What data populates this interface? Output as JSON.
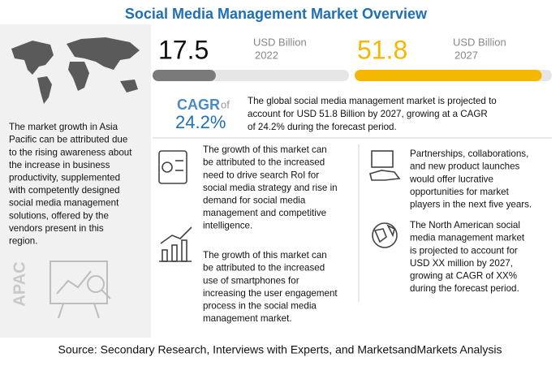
{
  "title": "Social Media Management Market Overview",
  "apac": {
    "label": "APAC",
    "text": [
      "The market growth in Asia",
      "Pacific can be attributed due",
      "to the rising awareness about",
      "the increase in business",
      "productivity, supplemented",
      "with competently designed",
      "social media management",
      "solutions, offered by the",
      "vendors present in this",
      "region."
    ]
  },
  "metrics": [
    {
      "value": 17.5,
      "unit": "USD Billion",
      "year": "2022"
    },
    {
      "value": 51.8,
      "unit": "USD Billion",
      "year": "2027"
    }
  ],
  "cagr": {
    "label": "CAGR",
    "of": "of",
    "value": "24.2%",
    "text": [
      "The global social media management market is projected to",
      "account for USD 51.8 Billion by 2027, growing at a CAGR",
      "of 24.2% during the forecast period."
    ]
  },
  "insights": [
    {
      "text": [
        "The growth of this market can",
        "be attributed to the increased",
        "need to drive search RoI for",
        "social media strategy and rise in",
        "demand for social media",
        "management and competitive",
        "intelligence."
      ]
    },
    {
      "text": [
        "The growth of this market can",
        "be attributed to the increased",
        "use of smartphones for",
        "increasing the user engagement",
        "process in the social media",
        "management market."
      ]
    },
    {
      "text": [
        "Partnerships, collaborations,",
        "and new product launches",
        "would offer lucrative",
        "opportunities for market",
        "players in the next five years."
      ]
    },
    {
      "text": [
        "The North American social",
        "media management market",
        "is projected to account for",
        "USD XX million by 2027,",
        "growing at CAGR of XX%",
        "during the forecast period."
      ]
    }
  ],
  "source": "Source: Secondary Research, Interviews with Experts, and MarketsandMarkets Analysis"
}
